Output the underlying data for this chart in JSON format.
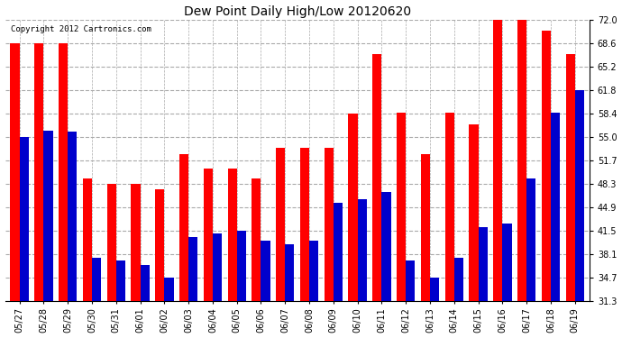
{
  "title": "Dew Point Daily High/Low 20120620",
  "copyright": "Copyright 2012 Cartronics.com",
  "categories": [
    "05/27",
    "05/28",
    "05/29",
    "05/30",
    "05/31",
    "06/01",
    "06/02",
    "06/03",
    "06/04",
    "06/05",
    "06/06",
    "06/07",
    "06/08",
    "06/09",
    "06/10",
    "06/11",
    "06/12",
    "06/13",
    "06/14",
    "06/15",
    "06/16",
    "06/17",
    "06/18",
    "06/19"
  ],
  "highs": [
    68.6,
    68.6,
    68.6,
    49.0,
    48.3,
    48.3,
    47.5,
    52.5,
    50.5,
    50.5,
    49.0,
    53.5,
    53.5,
    53.5,
    58.4,
    67.0,
    58.5,
    52.5,
    58.5,
    56.8,
    73.5,
    73.5,
    70.5,
    67.0
  ],
  "lows": [
    55.0,
    56.0,
    55.8,
    37.5,
    37.2,
    36.5,
    34.7,
    40.5,
    41.0,
    41.5,
    40.0,
    39.5,
    40.0,
    45.5,
    46.0,
    47.0,
    37.2,
    34.7,
    37.5,
    42.0,
    42.5,
    49.0,
    58.5,
    61.8
  ],
  "high_color": "#ff0000",
  "low_color": "#0000cc",
  "bg_color": "#ffffff",
  "grid_color": "#aaaaaa",
  "yticks": [
    31.3,
    34.7,
    38.1,
    41.5,
    44.9,
    48.3,
    51.7,
    55.0,
    58.4,
    61.8,
    65.2,
    68.6,
    72.0
  ],
  "ymin": 31.3,
  "ymax": 72.0,
  "bar_width": 0.38,
  "title_fontsize": 10,
  "tick_fontsize": 7,
  "copyright_fontsize": 6.5
}
